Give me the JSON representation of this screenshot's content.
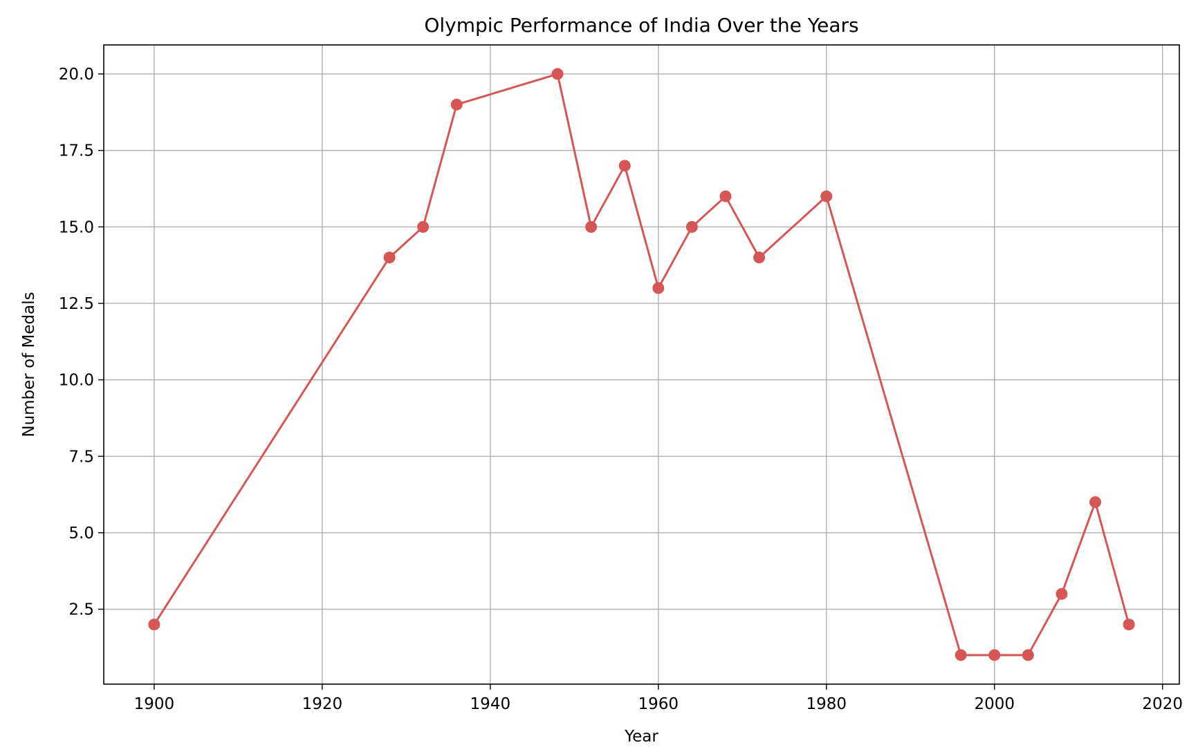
{
  "chart_data": {
    "type": "line",
    "title": "Olympic Performance of India Over the Years",
    "xlabel": "Year",
    "ylabel": "Number of Medals",
    "xlim": [
      1894,
      2022
    ],
    "ylim": [
      0.05,
      20.95
    ],
    "xticks": [
      1900,
      1920,
      1940,
      1960,
      1980,
      2000,
      2020
    ],
    "yticks": [
      2.5,
      5.0,
      7.5,
      10.0,
      12.5,
      15.0,
      17.5,
      20.0
    ],
    "xtick_labels": [
      "1900",
      "1920",
      "1940",
      "1960",
      "1980",
      "2000",
      "2020"
    ],
    "ytick_labels": [
      "2.5",
      "5.0",
      "7.5",
      "10.0",
      "12.5",
      "15.0",
      "17.5",
      "20.0"
    ],
    "grid": true,
    "marker": "circle",
    "line_color": "#d65656",
    "series": [
      {
        "x": [
          1900,
          1928,
          1932,
          1936,
          1948,
          1952,
          1956,
          1960,
          1964,
          1968,
          1972,
          1980,
          1996,
          2000,
          2004,
          2008,
          2012,
          2016
        ],
        "y": [
          2,
          14,
          15,
          19,
          20,
          15,
          17,
          13,
          15,
          16,
          14,
          16,
          1,
          1,
          1,
          3,
          6,
          2
        ]
      }
    ]
  }
}
